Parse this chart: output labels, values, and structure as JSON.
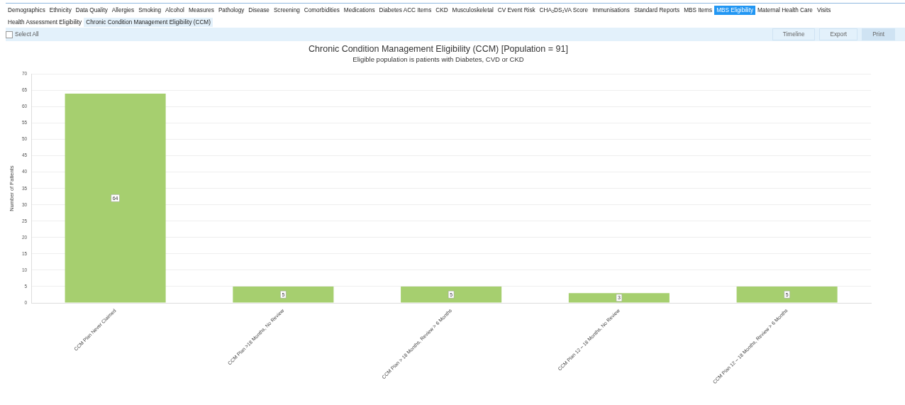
{
  "chart_data": [
    {
      "type": "other",
      "annotations": [
        "Demographics",
        "Ethnicity",
        "Data Quality",
        "Allergies",
        "Smoking",
        "Alcohol",
        "Measures",
        "Pathology",
        "Disease",
        "Screening",
        "Comorbidities",
        "Medications",
        "Diabetes ACC Items",
        "CKD",
        "Musculoskeletal",
        "CV Event Risk",
        "CHA₂DS₂VA Score",
        "Immunisations",
        "Standard Reports",
        "MBS Items",
        "MBS Eligibility",
        "Maternal Health Care",
        "Visits",
        "Health Assessment Eligibility",
        "Chronic Condition Management Eligibility (CCM)",
        "Select All",
        "Timeline",
        "Export",
        "Print"
      ]
    },
    {
      "type": "bar",
      "title": "Chronic Condition Management Eligibility (CCM) [Population = 91]",
      "subtitle": "Eligible population is patients with Diabetes, CVD or CKD",
      "ylabel": "Number of Patients",
      "categories": [
        "CCM Plan Never Claimed",
        "CCM Plan >18 Months, No Review",
        "CCM Plan > 18 Months, Review > 6 Months",
        "CCM Plan 12 – 18 Months, No Review",
        "CCM Plan 12 – 18 Months, Review > 6 Months"
      ],
      "values": [
        64,
        5,
        5,
        3,
        5
      ],
      "color": "#a6cf6f",
      "ylim": [
        0,
        70
      ],
      "yticks": [
        0,
        5,
        10,
        15,
        20,
        25,
        30,
        35,
        40,
        45,
        50,
        55,
        60,
        65,
        70
      ],
      "grid": "y",
      "data_labels": true,
      "legend": false
    }
  ]
}
